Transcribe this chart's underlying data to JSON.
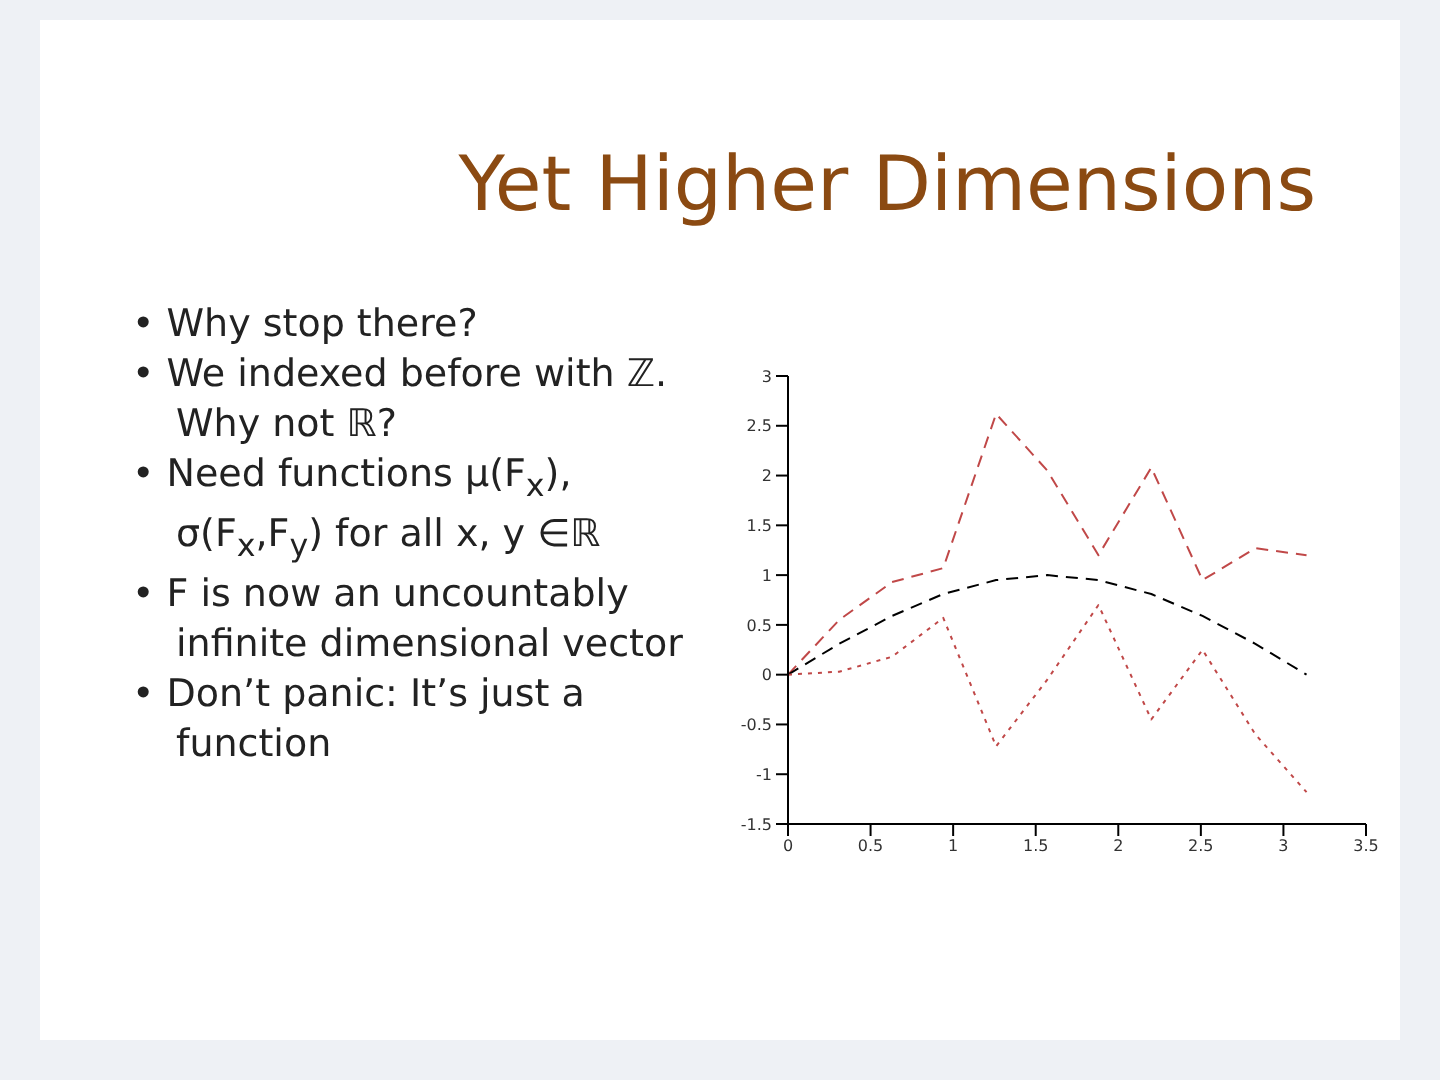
{
  "chart_data": {
    "type": "line",
    "title": "Yet Higher Dimensions",
    "annotations": [
      "• Why stop there?",
      "• We indexed before with ℤ. Why not ℝ?",
      "• Need functions μ(F$_{x}$), σ(F$_{x}$,F$_{y}$) for all x, y ∈ℝ",
      "• F is now an uncountably infinite dimensional vector",
      "• Don’t panic: It’s just a function"
    ],
    "x": [
      0,
      0.31,
      0.63,
      0.94,
      1.26,
      1.57,
      1.88,
      2.2,
      2.51,
      2.83,
      3.14
    ],
    "series": [
      {
        "color": "#c04848",
        "line_style": "dashed",
        "values": [
          0,
          0.55,
          0.93,
          1.07,
          2.62,
          2.05,
          1.2,
          2.08,
          0.95,
          1.27,
          1.2
        ]
      },
      {
        "color": "#000000",
        "line_style": "dashed",
        "values": [
          0,
          0.31,
          0.59,
          0.81,
          0.95,
          1,
          0.95,
          0.81,
          0.59,
          0.31,
          0
        ]
      },
      {
        "color": "#c04848",
        "line_style": "dotted",
        "values": [
          0,
          0.03,
          0.18,
          0.57,
          -0.72,
          -0.05,
          0.7,
          -0.45,
          0.25,
          -0.6,
          -1.18
        ]
      }
    ],
    "xlim": [
      0,
      3.5
    ],
    "xticks": [
      0,
      0.5,
      1,
      1.5,
      2,
      2.5,
      3,
      3.5
    ],
    "ylim": [
      -1.5,
      3
    ],
    "yticks": [
      -1.5,
      -1,
      -0.5,
      0,
      0.5,
      1,
      1.5,
      2,
      2.5,
      3
    ],
    "grid": false,
    "marker": "none"
  }
}
